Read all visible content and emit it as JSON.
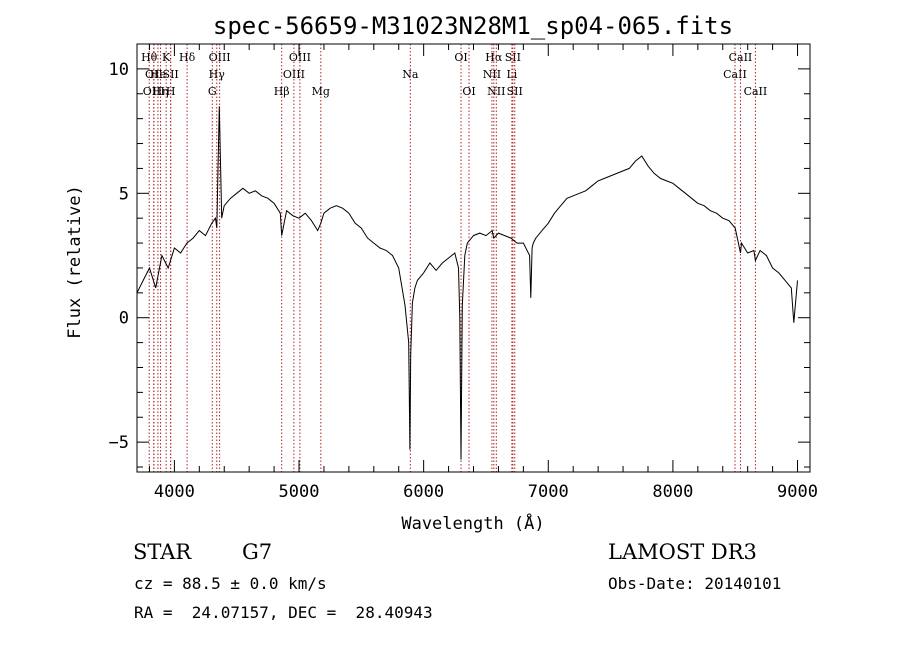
{
  "chart_data": {
    "type": "line",
    "title": "spec-56659-M31023N28M1_sp04-065.fits",
    "xlabel": "Wavelength (Å)",
    "ylabel": "Flux (relative)",
    "xlim": [
      3700,
      9100
    ],
    "ylim": [
      -6.2,
      11.0
    ],
    "xticks": [
      4000,
      5000,
      6000,
      7000,
      8000,
      9000
    ],
    "yticks": [
      -5,
      0,
      5,
      10
    ],
    "xtick_labels": [
      "4000",
      "5000",
      "6000",
      "7000",
      "8000",
      "9000"
    ],
    "ytick_labels": [
      "−5",
      "0",
      "5",
      "10"
    ],
    "grid": false,
    "line_color": "#000000",
    "marker_color": "#b22222",
    "series": [
      {
        "x": [
          3700,
          3750,
          3800,
          3850,
          3900,
          3950,
          4000,
          4050,
          4100,
          4150,
          4200,
          4250,
          4300,
          4330,
          4340,
          4360,
          4380,
          4400,
          4450,
          4500,
          4550,
          4600,
          4650,
          4700,
          4750,
          4800,
          4850,
          4861,
          4900,
          4950,
          5000,
          5050,
          5100,
          5150,
          5175,
          5200,
          5250,
          5300,
          5350,
          5400,
          5450,
          5500,
          5550,
          5600,
          5650,
          5700,
          5750,
          5800,
          5850,
          5880,
          5890,
          5896,
          5910,
          5930,
          5950,
          6000,
          6050,
          6100,
          6150,
          6200,
          6250,
          6280,
          6290,
          6300,
          6310,
          6330,
          6350,
          6400,
          6450,
          6500,
          6550,
          6563,
          6600,
          6650,
          6700,
          6750,
          6800,
          6850,
          6860,
          6870,
          6880,
          6900,
          6950,
          7000,
          7050,
          7100,
          7150,
          7200,
          7250,
          7300,
          7350,
          7400,
          7450,
          7500,
          7550,
          7600,
          7650,
          7700,
          7750,
          7800,
          7850,
          7900,
          7950,
          8000,
          8050,
          8100,
          8150,
          8200,
          8250,
          8300,
          8350,
          8400,
          8450,
          8500,
          8542,
          8550,
          8600,
          8650,
          8662,
          8700,
          8750,
          8800,
          8850,
          8900,
          8950,
          8970,
          9000
        ],
        "y": [
          1.0,
          1.5,
          2.0,
          1.2,
          2.5,
          2.0,
          2.8,
          2.6,
          3.0,
          3.2,
          3.5,
          3.3,
          3.8,
          4.0,
          3.6,
          8.5,
          4.0,
          4.5,
          4.8,
          5.0,
          5.2,
          5.0,
          5.1,
          4.9,
          4.8,
          4.6,
          4.2,
          3.3,
          4.3,
          4.1,
          4.0,
          4.2,
          3.9,
          3.5,
          3.8,
          4.2,
          4.4,
          4.5,
          4.4,
          4.2,
          3.8,
          3.6,
          3.2,
          3.0,
          2.8,
          2.7,
          2.5,
          2.0,
          0.5,
          -1.0,
          -5.3,
          -1.5,
          0.6,
          1.2,
          1.5,
          1.8,
          2.2,
          1.9,
          2.2,
          2.4,
          2.6,
          2.0,
          0.0,
          -5.7,
          0.5,
          2.5,
          3.0,
          3.3,
          3.4,
          3.3,
          3.5,
          3.2,
          3.4,
          3.3,
          3.2,
          3.0,
          3.0,
          2.5,
          0.8,
          2.8,
          3.0,
          3.2,
          3.5,
          3.8,
          4.2,
          4.5,
          4.8,
          4.9,
          5.0,
          5.1,
          5.3,
          5.5,
          5.6,
          5.7,
          5.8,
          5.9,
          6.0,
          6.3,
          6.5,
          6.1,
          5.8,
          5.6,
          5.5,
          5.4,
          5.2,
          5.0,
          4.8,
          4.6,
          4.5,
          4.3,
          4.2,
          4.0,
          3.9,
          3.6,
          2.6,
          3.0,
          2.6,
          2.7,
          2.3,
          2.7,
          2.5,
          2.0,
          1.8,
          1.5,
          1.2,
          -0.2,
          1.5
        ]
      }
    ],
    "line_markers": [
      {
        "wave": 3798,
        "label": "Hθ",
        "row": 0
      },
      {
        "wave": 3835,
        "label": "OII",
        "row": 1
      },
      {
        "wave": 3835,
        "label": "OIII",
        "row": 2
      },
      {
        "wave": 3868,
        "label": "He",
        "row": 1
      },
      {
        "wave": 3889,
        "label": "Hη",
        "row": 2
      },
      {
        "wave": 3934,
        "label": "K",
        "row": 0
      },
      {
        "wave": 3970,
        "label": "SII",
        "row": 1
      },
      {
        "wave": 3970,
        "label": "H",
        "row": 2
      },
      {
        "wave": 4102,
        "label": "Hδ",
        "row": 0
      },
      {
        "wave": 4304,
        "label": "G",
        "row": 2
      },
      {
        "wave": 4340,
        "label": "Hγ",
        "row": 1
      },
      {
        "wave": 4363,
        "label": "OIII",
        "row": 0
      },
      {
        "wave": 4861,
        "label": "Hβ",
        "row": 2
      },
      {
        "wave": 4959,
        "label": "OIII",
        "row": 1
      },
      {
        "wave": 5007,
        "label": "OIII",
        "row": 0
      },
      {
        "wave": 5175,
        "label": "Mg",
        "row": 2
      },
      {
        "wave": 5893,
        "label": "Na",
        "row": 1
      },
      {
        "wave": 6300,
        "label": "OI",
        "row": 0
      },
      {
        "wave": 6364,
        "label": "OI",
        "row": 2
      },
      {
        "wave": 6548,
        "label": "NII",
        "row": 1
      },
      {
        "wave": 6563,
        "label": "Hα",
        "row": 0
      },
      {
        "wave": 6583,
        "label": "NII",
        "row": 2
      },
      {
        "wave": 6708,
        "label": "Li",
        "row": 1
      },
      {
        "wave": 6716,
        "label": "SII",
        "row": 0
      },
      {
        "wave": 6731,
        "label": "SII",
        "row": 2
      },
      {
        "wave": 8498,
        "label": "CaII",
        "row": 1
      },
      {
        "wave": 8542,
        "label": "CaII",
        "row": 0
      },
      {
        "wave": 8662,
        "label": "CaII",
        "row": 2
      }
    ]
  },
  "info": {
    "class": "STAR",
    "subclass": "G7",
    "survey": "LAMOST DR3",
    "cz_line": "cz = 88.5 ± 0.0 km/s",
    "obs_date_line": "Obs-Date: 20140101",
    "radec_line": "RA =  24.07157, DEC =  28.40943"
  }
}
